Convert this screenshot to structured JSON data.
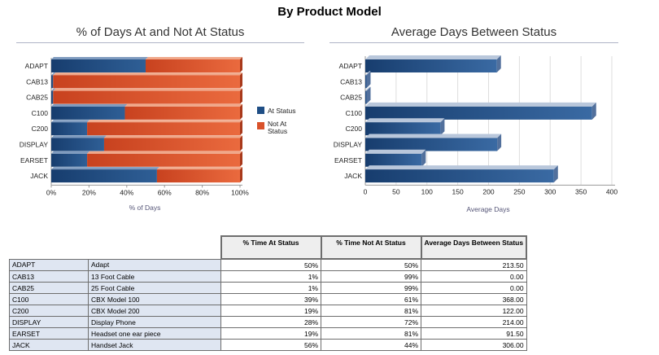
{
  "page_title": "By Product Model",
  "chart_data": [
    {
      "type": "bar",
      "orientation": "horizontal",
      "stacked": true,
      "title": "% of Days At and Not At Status",
      "xlabel": "% of Days",
      "ylabel": "",
      "categories": [
        "ADAPT",
        "CAB13",
        "CAB25",
        "C100",
        "C200",
        "DISPLAY",
        "EARSET",
        "JACK"
      ],
      "series": [
        {
          "name": "At Status",
          "color": "#1f4e85",
          "values": [
            50,
            1,
            1,
            39,
            19,
            28,
            19,
            56
          ]
        },
        {
          "name": "Not At Status",
          "color": "#d9522a",
          "values": [
            50,
            99,
            99,
            61,
            81,
            72,
            81,
            44
          ]
        }
      ],
      "xlim": [
        0,
        100
      ],
      "xticks": [
        "0%",
        "20%",
        "40%",
        "60%",
        "80%",
        "100%"
      ],
      "legend": "right",
      "legend_labels": [
        "At Status",
        "Not At Status"
      ]
    },
    {
      "type": "bar",
      "orientation": "horizontal",
      "title": "Average Days Between Status",
      "xlabel": "Average Days",
      "ylabel": "",
      "categories": [
        "ADAPT",
        "CAB13",
        "CAB25",
        "C100",
        "C200",
        "DISPLAY",
        "EARSET",
        "JACK"
      ],
      "values": [
        213.5,
        0,
        0,
        368,
        122,
        214,
        91.5,
        306
      ],
      "color": "#1f4e85",
      "xlim": [
        0,
        400
      ],
      "xticks": [
        "0",
        "50",
        "100",
        "150",
        "200",
        "250",
        "300",
        "350",
        "400"
      ]
    }
  ],
  "table": {
    "headers": [
      "% Time At Status",
      "% Time Not At Status",
      "Average Days Between Status"
    ],
    "rows": [
      {
        "code": "ADAPT",
        "desc": "Adapt",
        "at": "50%",
        "not_at": "50%",
        "avg": "213.50"
      },
      {
        "code": "CAB13",
        "desc": "13 Foot Cable",
        "at": "1%",
        "not_at": "99%",
        "avg": "0.00"
      },
      {
        "code": "CAB25",
        "desc": "25 Foot Cable",
        "at": "1%",
        "not_at": "99%",
        "avg": "0.00"
      },
      {
        "code": "C100",
        "desc": "CBX Model 100",
        "at": "39%",
        "not_at": "61%",
        "avg": "368.00"
      },
      {
        "code": "C200",
        "desc": "CBX Model 200",
        "at": "19%",
        "not_at": "81%",
        "avg": "122.00"
      },
      {
        "code": "DISPLAY",
        "desc": "Display Phone",
        "at": "28%",
        "not_at": "72%",
        "avg": "214.00"
      },
      {
        "code": "EARSET",
        "desc": "Headset one ear piece",
        "at": "19%",
        "not_at": "81%",
        "avg": "91.50"
      },
      {
        "code": "JACK",
        "desc": "Handset Jack",
        "at": "56%",
        "not_at": "44%",
        "avg": "306.00"
      }
    ]
  }
}
